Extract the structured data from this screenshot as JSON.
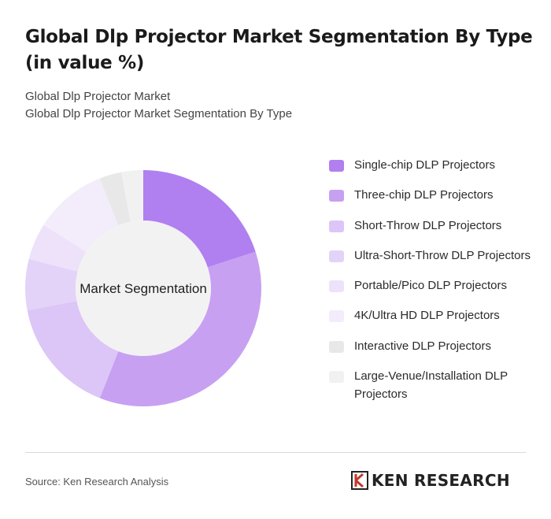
{
  "title": "Global Dlp Projector Market Segmentation By Type (in value %)",
  "breadcrumb": [
    "Global Dlp Projector Market",
    "Global Dlp Projector Market Segmentation By Type"
  ],
  "source": "Source: Ken Research Analysis",
  "brand": {
    "name": "KEN RESEARCH",
    "logo_icon": "ken-research-logo-icon"
  },
  "chart_data": {
    "type": "pie",
    "variant": "donut",
    "center_label": "Market Segmentation",
    "legend_position": "right",
    "categories": [
      "Single-chip DLP Projectors",
      "Three-chip DLP Projectors",
      "Short-Throw DLP Projectors",
      "Ultra-Short-Throw DLP Projectors",
      "Portable/Pico DLP Projectors",
      "4K/Ultra HD DLP Projectors",
      "Interactive DLP Projectors",
      "Large-Venue/Installation DLP Projectors"
    ],
    "values": [
      20,
      36,
      16,
      7,
      5,
      10,
      3,
      3
    ],
    "colors": [
      "#b07ff0",
      "#c7a0f2",
      "#dcc5f7",
      "#e4d3f8",
      "#ede2fa",
      "#f3ecfb",
      "#e8e8e8",
      "#f1f1f1"
    ]
  }
}
